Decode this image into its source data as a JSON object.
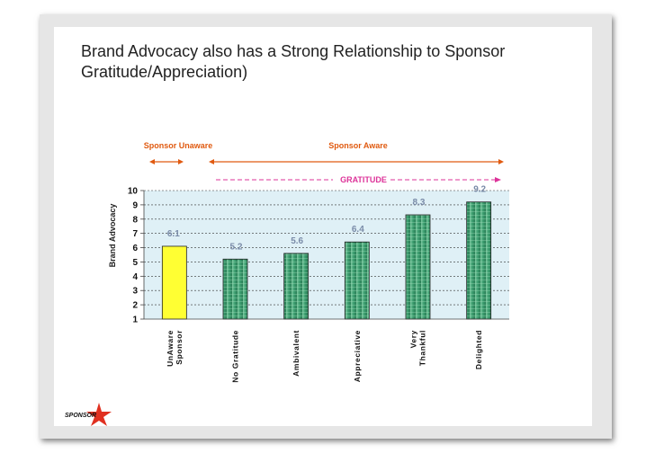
{
  "slide": {
    "title": "Brand Advocacy also has a Strong Relationship to Sponsor Gratitude/Appreciation)",
    "logo_text": "SPONSOR"
  },
  "annotations": {
    "unaware_label": "Sponsor Unaware",
    "aware_label": "Sponsor Aware",
    "gratitude_label": "GRATITUDE"
  },
  "colors": {
    "bar_highlight": "#ffff33",
    "bar_green": "#3a9c6e",
    "orange": "#e05a10",
    "magenta": "#dd3399",
    "value_label": "#7a8ba8",
    "plot_bg": "#dff0f6"
  },
  "chart_data": {
    "type": "bar",
    "title": "",
    "xlabel": "",
    "ylabel": "Brand Advocacy",
    "ylim": [
      1,
      10
    ],
    "yticks": [
      "1",
      "2",
      "3",
      "4",
      "5",
      "6",
      "7",
      "8",
      "9",
      "10"
    ],
    "categories": [
      [
        "UnAware",
        "Sponsor"
      ],
      [
        "No Gratitude"
      ],
      [
        "Ambivalent"
      ],
      [
        "Appreciative"
      ],
      [
        "Very",
        "Thankful"
      ],
      [
        "Delighted"
      ]
    ],
    "values": [
      6.1,
      5.2,
      5.6,
      6.4,
      8.3,
      9.2
    ],
    "value_labels": [
      "6.1",
      "5.2",
      "5.6",
      "6.4",
      "8.3",
      "9.2"
    ],
    "grid": true,
    "legend": "none"
  }
}
